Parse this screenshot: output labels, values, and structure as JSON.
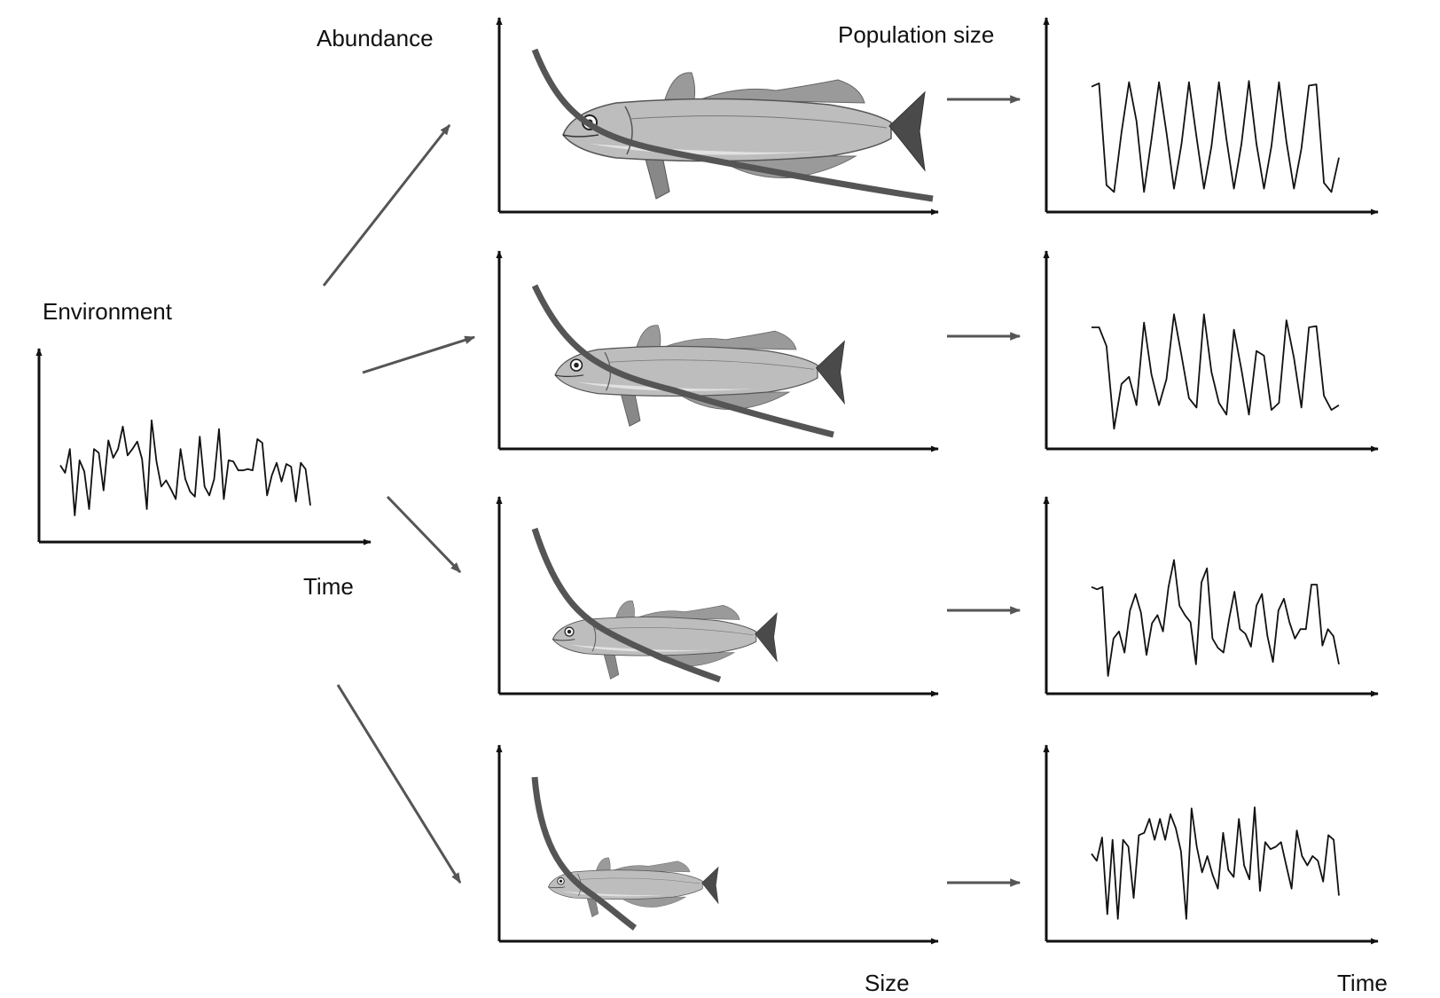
{
  "labels": {
    "environment": "Environment",
    "time_left": "Time",
    "abundance": "Abundance",
    "population_size": "Population size",
    "size": "Size",
    "time_right": "Time"
  },
  "colors": {
    "ink": "#111111",
    "curve": "#555555",
    "arrow": "#555555",
    "fish_body": "#bdbdbd",
    "fish_fin": "#9a9a9a"
  },
  "icons": [
    "fish-illustration"
  ],
  "environment_series": [
    0.45,
    0.39,
    0.58,
    0.05,
    0.49,
    0.4,
    0.1,
    0.58,
    0.55,
    0.25,
    0.65,
    0.51,
    0.58,
    0.76,
    0.53,
    0.58,
    0.64,
    0.5,
    0.1,
    0.81,
    0.48,
    0.28,
    0.33,
    0.26,
    0.18,
    0.58,
    0.34,
    0.24,
    0.2,
    0.68,
    0.28,
    0.21,
    0.34,
    0.74,
    0.18,
    0.49,
    0.48,
    0.41,
    0.41,
    0.42,
    0.41,
    0.66,
    0.63,
    0.21,
    0.37,
    0.47,
    0.32,
    0.46,
    0.44,
    0.16,
    0.47,
    0.42,
    0.13
  ],
  "rows": [
    {
      "id": "row-1",
      "fish_scale": 1.0,
      "curve": "shallow",
      "population_series": [
        0.94,
        0.97,
        0.08,
        0.02,
        0.54,
        0.98,
        0.64,
        0.02,
        0.48,
        0.98,
        0.54,
        0.05,
        0.44,
        0.98,
        0.5,
        0.05,
        0.42,
        0.98,
        0.48,
        0.05,
        0.44,
        0.99,
        0.44,
        0.05,
        0.42,
        0.98,
        0.46,
        0.05,
        0.4,
        0.95,
        0.96,
        0.1,
        0.02,
        0.32
      ]
    },
    {
      "id": "row-2",
      "fish_scale": 0.8,
      "curve": "medium",
      "population_series": [
        0.88,
        0.88,
        0.72,
        0.02,
        0.4,
        0.46,
        0.22,
        0.92,
        0.48,
        0.22,
        0.44,
        0.99,
        0.64,
        0.28,
        0.2,
        0.99,
        0.5,
        0.24,
        0.14,
        0.86,
        0.52,
        0.14,
        0.68,
        0.64,
        0.18,
        0.24,
        0.94,
        0.62,
        0.2,
        0.88,
        0.89,
        0.3,
        0.18,
        0.22
      ]
    },
    {
      "id": "row-3",
      "fish_scale": 0.62,
      "curve": "steep",
      "population_series": [
        0.76,
        0.74,
        0.76,
        0.0,
        0.32,
        0.38,
        0.2,
        0.56,
        0.7,
        0.54,
        0.18,
        0.45,
        0.52,
        0.38,
        0.76,
        0.99,
        0.6,
        0.52,
        0.46,
        0.1,
        0.8,
        0.92,
        0.32,
        0.24,
        0.2,
        0.48,
        0.72,
        0.4,
        0.36,
        0.25,
        0.6,
        0.7,
        0.34,
        0.12,
        0.56,
        0.66,
        0.46,
        0.32,
        0.4,
        0.4,
        0.78,
        0.78,
        0.26,
        0.4,
        0.34,
        0.1
      ]
    },
    {
      "id": "row-4",
      "fish_scale": 0.47,
      "curve": "steepest",
      "population_series": [
        0.6,
        0.54,
        0.74,
        0.08,
        0.72,
        0.04,
        0.72,
        0.66,
        0.22,
        0.76,
        0.78,
        0.9,
        0.72,
        0.9,
        0.72,
        0.94,
        0.82,
        0.62,
        0.04,
        0.99,
        0.66,
        0.44,
        0.58,
        0.42,
        0.3,
        0.78,
        0.46,
        0.4,
        0.9,
        0.5,
        0.38,
        1.0,
        0.28,
        0.7,
        0.64,
        0.66,
        0.7,
        0.5,
        0.3,
        0.8,
        0.58,
        0.5,
        0.58,
        0.54,
        0.36,
        0.76,
        0.72,
        0.24
      ]
    }
  ]
}
